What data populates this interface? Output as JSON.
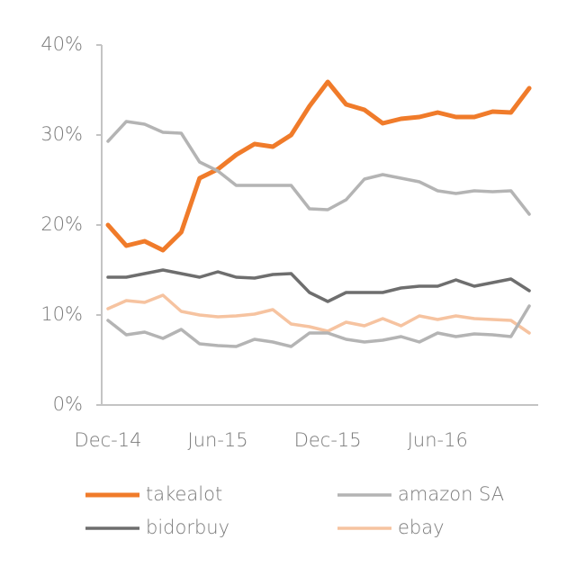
{
  "chart_data": {
    "type": "line",
    "categories": [
      "Dec-14",
      null,
      null,
      null,
      null,
      null,
      "Jun-15",
      null,
      null,
      null,
      null,
      null,
      "Dec-15",
      null,
      null,
      null,
      null,
      null,
      "Jun-16",
      null,
      null,
      null,
      null,
      null
    ],
    "series": [
      {
        "name": "takealot",
        "color": "#f07b2a",
        "width": 5,
        "values": [
          20,
          17.7,
          18.2,
          17.2,
          19.2,
          25.2,
          26.2,
          27.8,
          29,
          28.7,
          30,
          33.2,
          35.9,
          33.4,
          32.8,
          31.3,
          31.8,
          32,
          32.5,
          32,
          32,
          32.6,
          32.5,
          35.2
        ]
      },
      {
        "name": "amazon SA",
        "color": "#b4b4b4",
        "width": 3.5,
        "values": [
          29.3,
          31.5,
          31.2,
          30.3,
          30.2,
          27,
          26,
          24.4,
          24.4,
          24.4,
          24.4,
          21.8,
          21.7,
          22.8,
          25.1,
          25.6,
          25.2,
          24.8,
          23.8,
          23.5,
          23.8,
          23.7,
          23.8,
          21.2
        ]
      },
      {
        "name": "bidorbuy",
        "color": "#6e6e6e",
        "width": 3.5,
        "values": [
          14.2,
          14.2,
          14.6,
          15,
          14.6,
          14.2,
          14.8,
          14.2,
          14.1,
          14.5,
          14.6,
          12.5,
          11.5,
          12.5,
          12.5,
          12.5,
          13,
          13.2,
          13.2,
          13.9,
          13.2,
          13.6,
          14,
          12.7
        ]
      },
      {
        "name": "ebay",
        "color": "#f6c3a0",
        "width": 3.5,
        "values": [
          10.7,
          11.6,
          11.4,
          12.2,
          10.4,
          10,
          9.8,
          9.9,
          10.1,
          10.6,
          9,
          8.7,
          8.2,
          9.2,
          8.8,
          9.6,
          8.8,
          9.9,
          9.5,
          9.9,
          9.6,
          9.5,
          9.4,
          8
        ]
      },
      {
        "color": "#b4b4b4",
        "width": 3.5,
        "values": [
          9.4,
          7.8,
          8.1,
          7.4,
          8.4,
          6.8,
          6.6,
          6.5,
          7.3,
          7,
          6.5,
          8,
          8,
          7.3,
          7,
          7.2,
          7.6,
          7,
          8,
          7.6,
          7.9,
          7.8,
          7.6,
          11
        ]
      }
    ],
    "ylim": [
      0,
      40
    ],
    "yticks": [
      {
        "value": 0,
        "label": "0%"
      },
      {
        "value": 10,
        "label": "10%"
      },
      {
        "value": 20,
        "label": "20%"
      },
      {
        "value": 30,
        "label": "30%"
      },
      {
        "value": 40,
        "label": "40%"
      }
    ]
  }
}
